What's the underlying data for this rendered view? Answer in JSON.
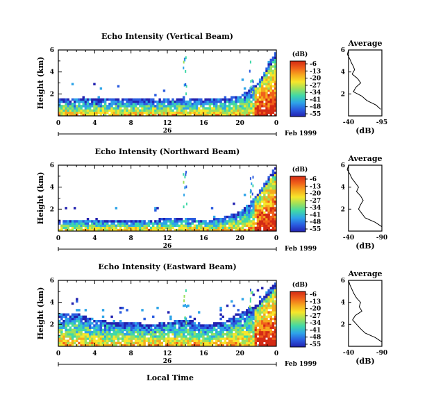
{
  "panels": [
    {
      "title": "Echo Intensity (Vertical Beam)",
      "beam": "vertical"
    },
    {
      "title": "Echo Intensity (Northward Beam)",
      "beam": "northward"
    },
    {
      "title": "Echo Intensity (Eastward Beam)",
      "beam": "eastward"
    }
  ],
  "axis_labels": {
    "y": "Height (km)",
    "x": "Local Time"
  },
  "x_ticks": [
    "0",
    "4",
    "8",
    "12",
    "16",
    "20",
    "0"
  ],
  "y_ticks": [
    "6",
    "4",
    "2"
  ],
  "date_tick": "26",
  "date_label": "Feb 1999",
  "colorbar": {
    "unit": "(dB)",
    "ticks": [
      "-6",
      "-13",
      "-20",
      "-27",
      "-34",
      "-41",
      "-48",
      "-55"
    ],
    "colors": [
      "#d42a14",
      "#f0601a",
      "#f6a91e",
      "#f7e62a",
      "#9be05c",
      "#3fd8a8",
      "#2ea4e8",
      "#2a5ce0",
      "#2222b0"
    ]
  },
  "averages": [
    {
      "title": "Average",
      "x_ticks": [
        "-40",
        "-95"
      ],
      "y_ticks": [
        "6",
        "4",
        "2"
      ],
      "xlabel": "(dB)"
    },
    {
      "title": "Average",
      "x_ticks": [
        "-40",
        "-90"
      ],
      "y_ticks": [
        "6",
        "4",
        "2"
      ],
      "xlabel": "(dB)"
    },
    {
      "title": "Average",
      "x_ticks": [
        "-40",
        "-90"
      ],
      "y_ticks": [
        "6",
        "4",
        "2"
      ],
      "xlabel": "(dB)"
    }
  ],
  "chart_data": [
    {
      "type": "heatmap",
      "title": "Echo Intensity (Vertical Beam)",
      "xlabel": "",
      "ylabel": "Height (km)",
      "xlim": [
        0,
        24
      ],
      "ylim": [
        0,
        6
      ],
      "colorbar_label": "(dB)",
      "colorbar_range": [
        -55,
        -6
      ],
      "echo_top_km": [
        [
          0,
          1.6
        ],
        [
          2,
          1.5
        ],
        [
          4,
          1.5
        ],
        [
          6,
          1.5
        ],
        [
          8,
          1.5
        ],
        [
          10,
          1.5
        ],
        [
          12,
          1.6
        ],
        [
          14,
          1.5
        ],
        [
          16,
          1.5
        ],
        [
          18,
          1.6
        ],
        [
          20,
          1.8
        ],
        [
          22,
          3.0
        ],
        [
          24,
          6.0
        ]
      ]
    },
    {
      "type": "heatmap",
      "title": "Echo Intensity (Northward Beam)",
      "xlabel": "",
      "ylabel": "Height (km)",
      "xlim": [
        0,
        24
      ],
      "ylim": [
        0,
        6
      ],
      "colorbar_label": "(dB)",
      "colorbar_range": [
        -55,
        -6
      ],
      "echo_top_km": [
        [
          0,
          1.0
        ],
        [
          2,
          1.0
        ],
        [
          4,
          1.0
        ],
        [
          6,
          1.0
        ],
        [
          8,
          1.0
        ],
        [
          10,
          1.0
        ],
        [
          12,
          1.2
        ],
        [
          14,
          1.2
        ],
        [
          16,
          1.0
        ],
        [
          18,
          1.2
        ],
        [
          20,
          1.8
        ],
        [
          22,
          3.5
        ],
        [
          24,
          6.0
        ]
      ]
    },
    {
      "type": "heatmap",
      "title": "Echo Intensity (Eastward Beam)",
      "xlabel": "Local Time",
      "ylabel": "Height (km)",
      "xlim": [
        0,
        24
      ],
      "ylim": [
        0,
        6
      ],
      "colorbar_label": "(dB)",
      "colorbar_range": [
        -55,
        -6
      ],
      "echo_top_km": [
        [
          0,
          3.0
        ],
        [
          2,
          3.0
        ],
        [
          4,
          2.5
        ],
        [
          6,
          2.2
        ],
        [
          8,
          2.2
        ],
        [
          10,
          2.0
        ],
        [
          12,
          2.2
        ],
        [
          14,
          2.5
        ],
        [
          16,
          2.0
        ],
        [
          18,
          2.2
        ],
        [
          20,
          3.0
        ],
        [
          22,
          4.0
        ],
        [
          24,
          6.0
        ]
      ]
    },
    {
      "type": "line",
      "title": "Average",
      "xlabel": "(dB)",
      "ylabel": "",
      "x": [
        -40,
        -38,
        -42,
        -45,
        -48,
        -50,
        -46,
        -55,
        -60,
        -52,
        -48,
        -62,
        -70,
        -85,
        -93
      ],
      "y": [
        6.0,
        5.6,
        5.2,
        4.8,
        4.5,
        4.2,
        3.8,
        3.4,
        3.0,
        2.6,
        2.2,
        1.8,
        1.4,
        1.0,
        0.6
      ],
      "xlim": [
        -40,
        -95
      ],
      "ylim": [
        0,
        6
      ]
    },
    {
      "type": "line",
      "title": "Average",
      "xlabel": "(dB)",
      "ylabel": "",
      "x": [
        -40,
        -38,
        -42,
        -45,
        -50,
        -55,
        -52,
        -58,
        -62,
        -58,
        -55,
        -60,
        -65,
        -80,
        -90
      ],
      "y": [
        6.0,
        5.6,
        5.2,
        4.8,
        4.4,
        4.0,
        3.6,
        3.2,
        2.8,
        2.4,
        2.0,
        1.6,
        1.2,
        0.8,
        0.4
      ],
      "xlim": [
        -40,
        -90
      ],
      "ylim": [
        0,
        6
      ]
    },
    {
      "type": "line",
      "title": "Average",
      "xlabel": "(dB)",
      "ylabel": "",
      "x": [
        -40,
        -42,
        -45,
        -48,
        -52,
        -58,
        -56,
        -60,
        -50,
        -46,
        -52,
        -58,
        -65,
        -80,
        -90
      ],
      "y": [
        6.0,
        5.6,
        5.2,
        4.8,
        4.4,
        4.0,
        3.6,
        3.2,
        2.8,
        2.4,
        2.0,
        1.6,
        1.2,
        0.8,
        0.4
      ],
      "xlim": [
        -40,
        -90
      ],
      "ylim": [
        0,
        6
      ]
    }
  ]
}
